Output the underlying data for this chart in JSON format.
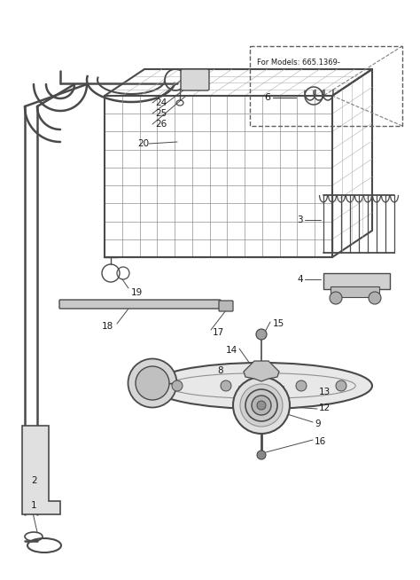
{
  "bg_color": "#ffffff",
  "line_color": "#4a4a4a",
  "text_color": "#1a1a1a",
  "fig_width": 4.74,
  "fig_height": 6.54,
  "dpi": 100
}
